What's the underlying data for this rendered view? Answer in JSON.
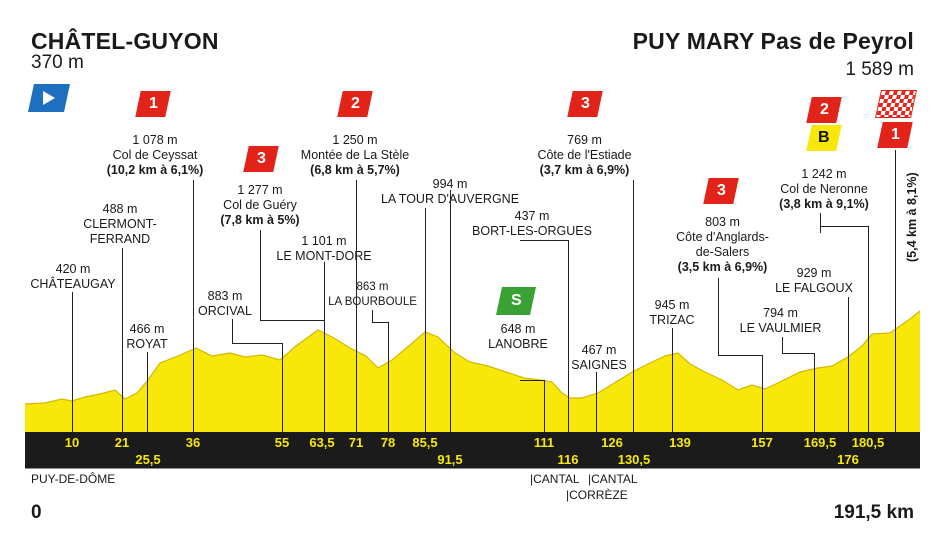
{
  "start": {
    "name": "CHÂTEL-GUYON",
    "altitude": "370 m",
    "km": "0",
    "department": "PUY-DE-DÔME"
  },
  "finish": {
    "name": "PUY MARY Pas de Peyrol",
    "altitude": "1 589 m",
    "distance": "191,5 km"
  },
  "final_climb_label": "(5,4 km à 8,1%)",
  "climbs": [
    {
      "category": "1",
      "altitude": "1 078 m",
      "name": "Col de Ceyssat",
      "detail": "(10,2 km à 6,1%)"
    },
    {
      "category": "3",
      "altitude": "1 277 m",
      "name": "Col de Guéry",
      "detail": "(7,8 km à 5%)"
    },
    {
      "category": "2",
      "altitude": "1 250 m",
      "name": "Montée de La Stèle",
      "detail": "(6,8 km à 5,7%)"
    },
    {
      "category": "3",
      "altitude": "769 m",
      "name": "Côte de l'Estiade",
      "detail": "(3,7 km à 6,9%)"
    },
    {
      "category": "3",
      "altitude": "803 m",
      "name": "Côte d'Anglards-de-Salers",
      "name_line1": "Côte d'Anglards-",
      "name_line2": "de-Salers",
      "detail": "(3,5 km à 6,9%)"
    },
    {
      "category": "2",
      "bonus": "B",
      "altitude": "1 242 m",
      "name": "Col de Neronne",
      "detail": "(3,8 km à 9,1%)"
    },
    {
      "category": "1",
      "finish_flag": true,
      "altitude": "1 589 m",
      "name": "PUY MARY Pas de Peyrol",
      "detail": "(5,4 km à 8,1%)"
    }
  ],
  "places": [
    {
      "altitude": "420 m",
      "name": "CHÂTEAUGAY"
    },
    {
      "altitude": "488 m",
      "name_line1": "CLERMONT-",
      "name_line2": "FERRAND"
    },
    {
      "altitude": "466 m",
      "name": "ROYAT"
    },
    {
      "altitude": "883 m",
      "name": "ORCIVAL"
    },
    {
      "altitude": "1 101 m",
      "name": "LE MONT-DORE"
    },
    {
      "altitude": "863 m",
      "name": "LA BOURBOULE"
    },
    {
      "altitude": "994 m",
      "name": "LA TOUR D'AUVERGNE"
    },
    {
      "altitude": "437 m",
      "name": "BORT-LES-ORGUES"
    },
    {
      "altitude": "648 m",
      "name": "LANOBRE"
    },
    {
      "altitude": "467 m",
      "name": "SAIGNES"
    },
    {
      "altitude": "945 m",
      "name": "TRIZAC"
    },
    {
      "altitude": "794 m",
      "name": "LE VAULMIER"
    },
    {
      "altitude": "929 m",
      "name": "LE FALGOUX"
    }
  ],
  "sprint": {
    "label": "S",
    "altitude": "648 m",
    "name": "LANOBRE"
  },
  "km_markers": [
    "10",
    "21",
    "25,5",
    "36",
    "55",
    "63,5",
    "71",
    "78",
    "85,5",
    "91,5",
    "111",
    "116",
    "126",
    "130,5",
    "139",
    "157",
    "169,5",
    "176",
    "180,5"
  ],
  "departments": {
    "cantal_left": "|CANTAL",
    "cantal_right": "|CANTAL",
    "correze": "|CORRÈZE"
  },
  "colors": {
    "profile": "#f7e80a",
    "band": "#1b1b1b",
    "km_text": "#f7e80a",
    "cat_red": "#e2231a",
    "bonus_yellow": "#f7e80a",
    "sprint_green": "#3aa235",
    "start_blue": "#1f6fc0"
  }
}
